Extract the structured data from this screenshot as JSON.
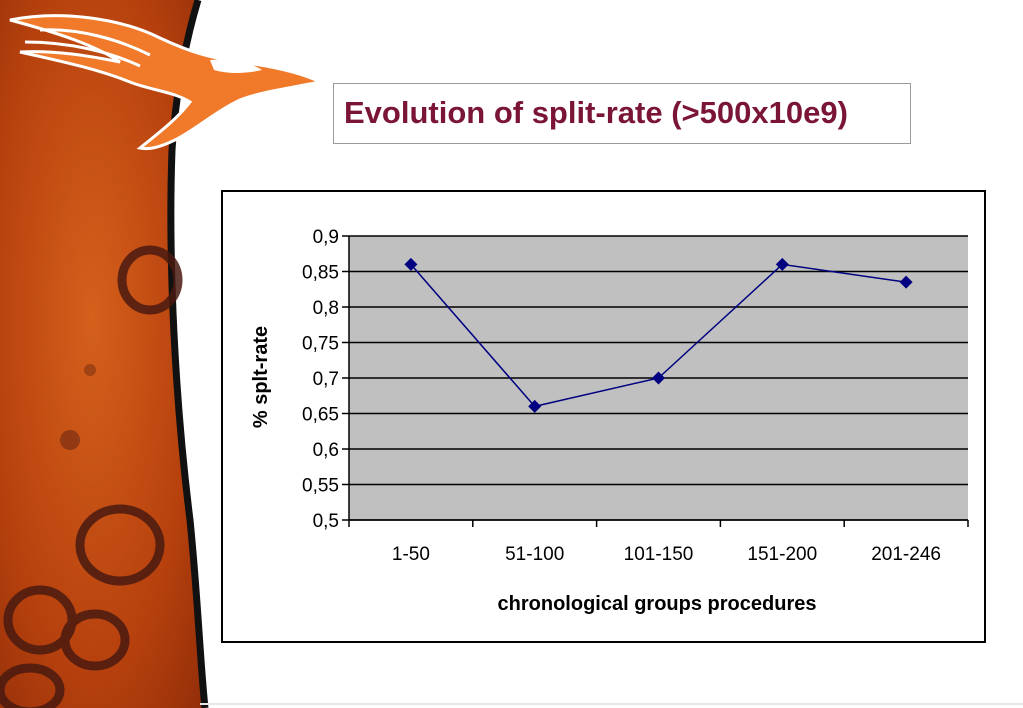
{
  "slide": {
    "title": "Evolution of split-rate (>500x10e9)"
  },
  "colors": {
    "title": "#7a1535",
    "plot_bg": "#c0c0c0",
    "series": "#000080",
    "side_orange": "#c94f12"
  },
  "icons": {
    "logo": "pelican-logo-icon"
  },
  "chart_data": {
    "type": "line",
    "categories": [
      "1-50",
      "51-100",
      "101-150",
      "151-200",
      "201-246"
    ],
    "series": [
      {
        "values": [
          0.86,
          0.66,
          0.7,
          0.86,
          0.835
        ]
      }
    ],
    "yticks": [
      "0,9",
      "0,85",
      "0,8",
      "0,75",
      "0,7",
      "0,65",
      "0,6",
      "0,55",
      "0,5"
    ],
    "ylim": [
      0.5,
      0.9
    ],
    "ystep": 0.05,
    "xlabel": "chronological groups procedures",
    "ylabel": "% splt-rate",
    "grid": true,
    "legend": "none",
    "marker": "diamond"
  }
}
